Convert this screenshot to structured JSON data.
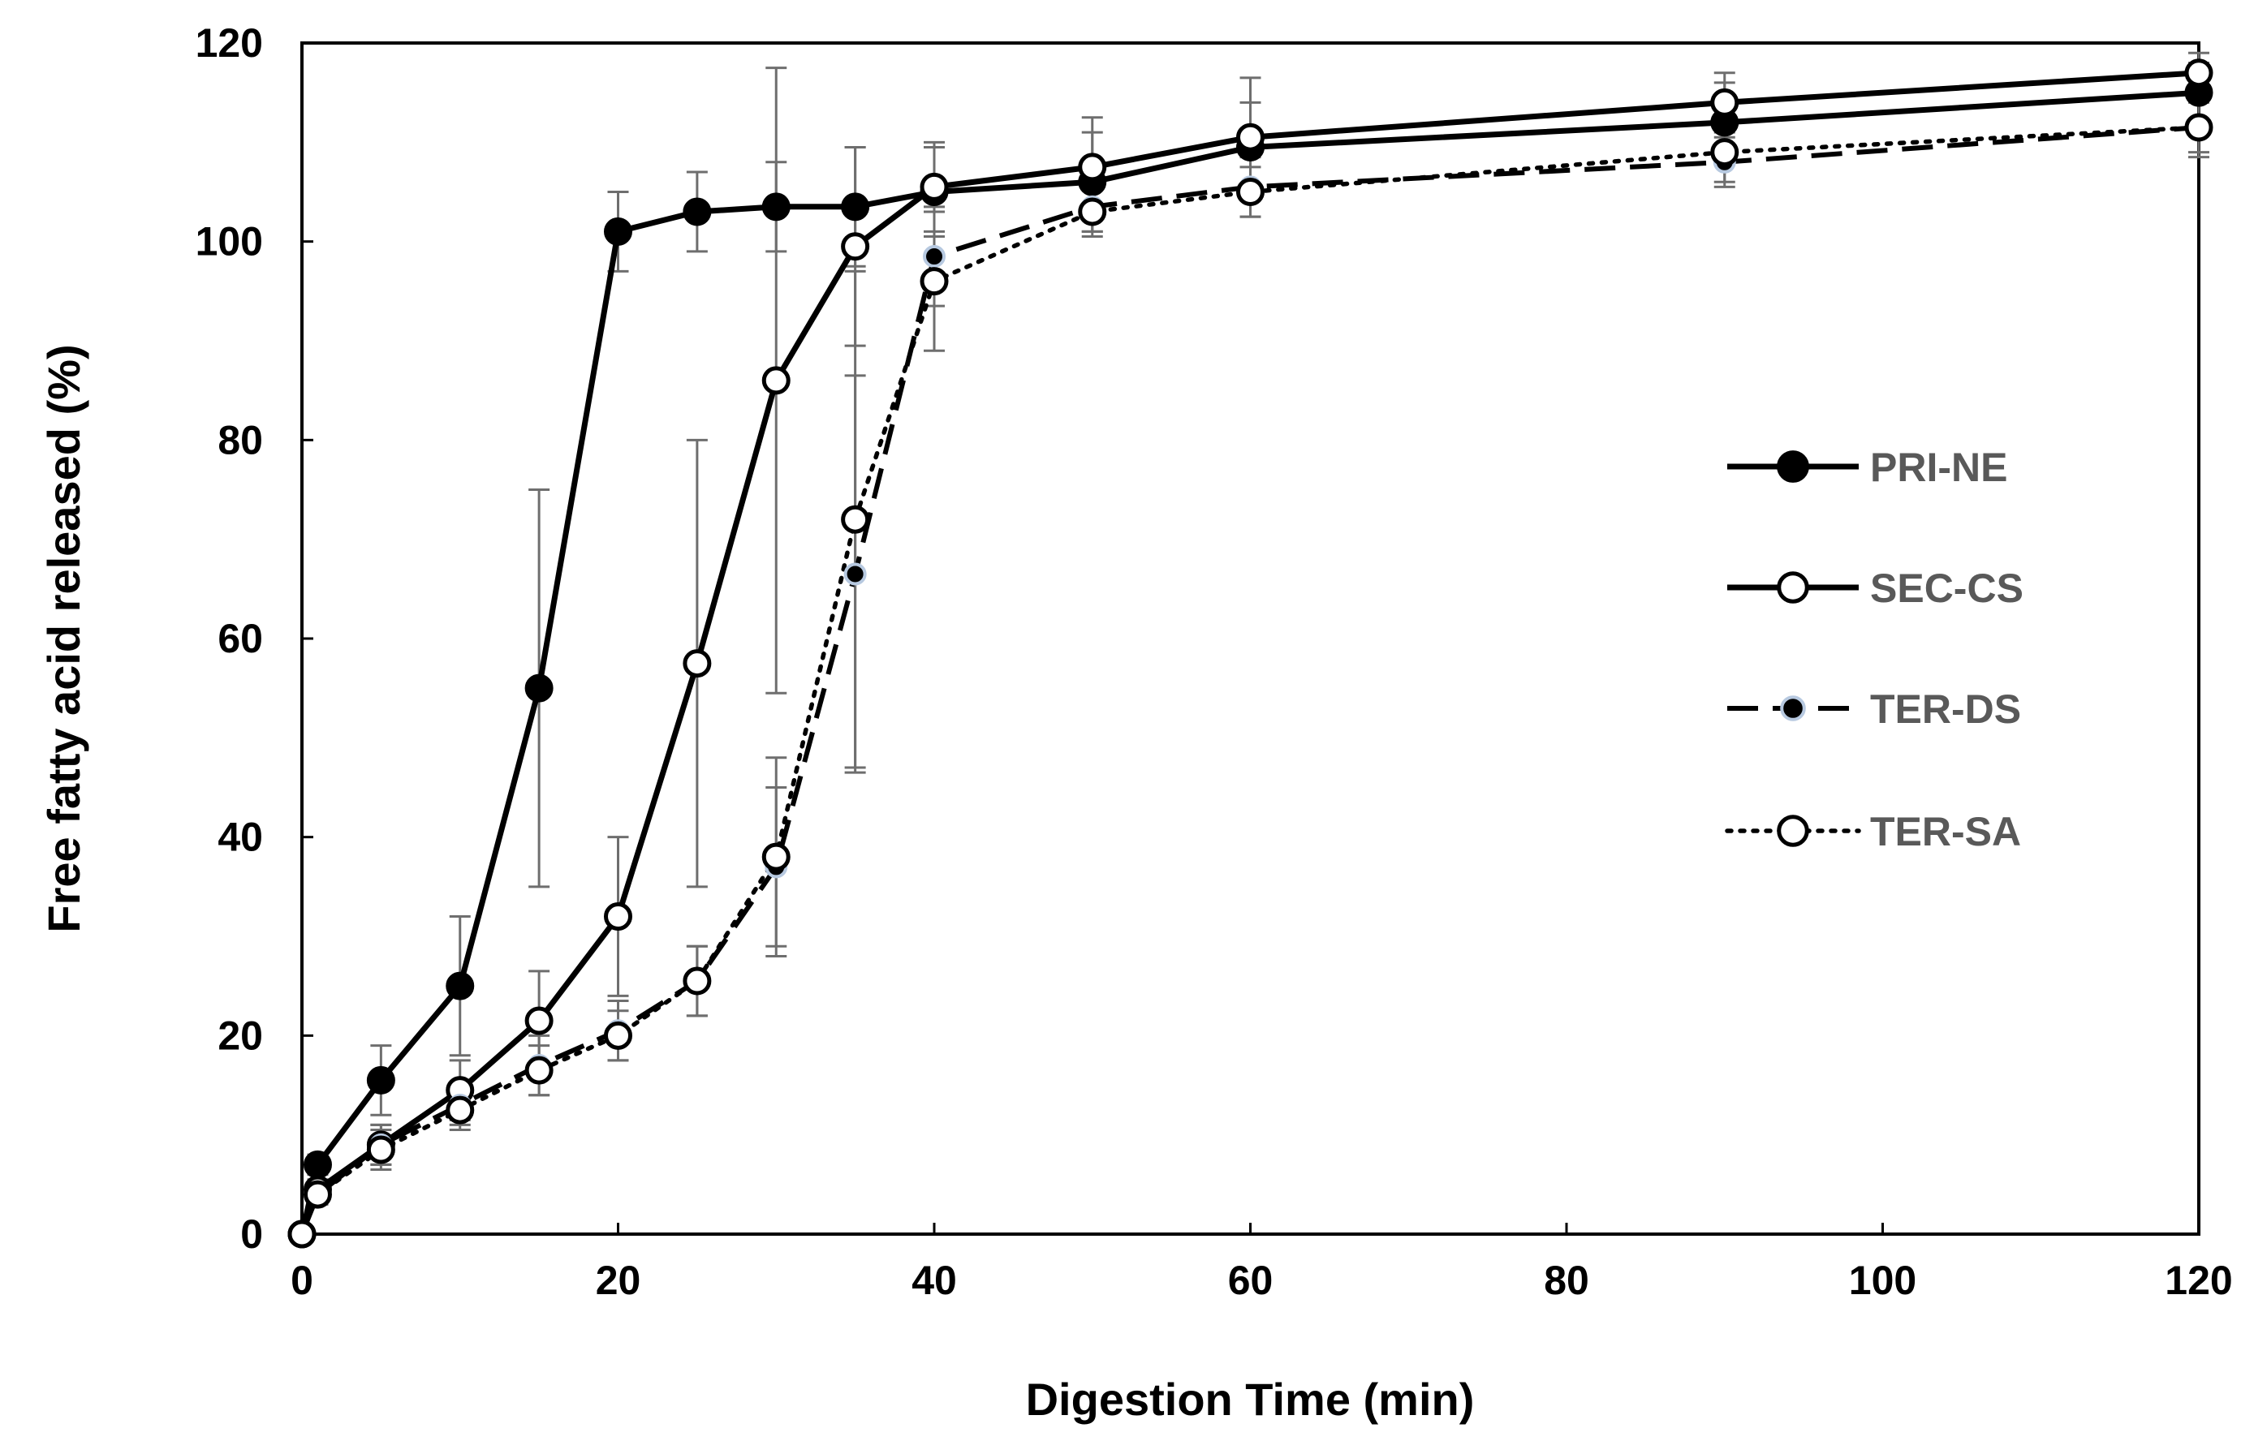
{
  "chart_data": {
    "type": "line",
    "title": "",
    "xlabel": "Digestion Time (min)",
    "ylabel": "Free fatty acid released (%)",
    "xlim": [
      0,
      120
    ],
    "ylim": [
      0,
      120
    ],
    "xticks": [
      0,
      20,
      40,
      60,
      80,
      100,
      120
    ],
    "yticks": [
      0,
      20,
      40,
      60,
      80,
      100,
      120
    ],
    "grid": false,
    "legend_position": "right",
    "x": [
      0,
      1,
      5,
      10,
      15,
      20,
      25,
      30,
      35,
      40,
      50,
      60,
      90,
      120
    ],
    "series": [
      {
        "name": "PRI-NE",
        "line_style": "solid",
        "marker": "filled-circle",
        "values": [
          0,
          7,
          15.5,
          25,
          55,
          101,
          103,
          103.5,
          103.5,
          105,
          106,
          109.5,
          112,
          115
        ],
        "errors": [
          0,
          1,
          3.5,
          7,
          20,
          4,
          4,
          4.5,
          6,
          4.5,
          5,
          4.5,
          4,
          3
        ]
      },
      {
        "name": "SEC-CS",
        "line_style": "solid",
        "marker": "open-circle",
        "values": [
          0,
          4.5,
          9,
          14.5,
          21.5,
          32,
          57.5,
          86,
          99.5,
          105.5,
          107.5,
          110.5,
          114,
          117
        ],
        "errors": [
          0,
          1,
          2,
          3,
          5,
          8,
          22.5,
          31.5,
          10,
          4.5,
          5,
          6,
          3,
          2
        ]
      },
      {
        "name": "TER-DS",
        "line_style": "dashed",
        "marker": "small-dot",
        "values": [
          0,
          4,
          9,
          13,
          17,
          20.5,
          25.5,
          37,
          66.5,
          98.5,
          103.5,
          105.5,
          108,
          111.5
        ],
        "errors": [
          0,
          1,
          2,
          2,
          3,
          3,
          3.5,
          8,
          20,
          5,
          2.5,
          3,
          2.5,
          3
        ]
      },
      {
        "name": "TER-SA",
        "line_style": "dotted",
        "marker": "open-circle",
        "values": [
          0,
          4,
          8.5,
          12.5,
          16.5,
          20,
          25.5,
          38,
          72,
          96,
          103,
          105,
          109,
          111.5
        ],
        "errors": [
          0,
          1,
          2,
          2,
          2.5,
          2.5,
          3.5,
          10,
          25,
          7,
          2.5,
          2.5,
          3,
          2.5
        ]
      }
    ]
  }
}
